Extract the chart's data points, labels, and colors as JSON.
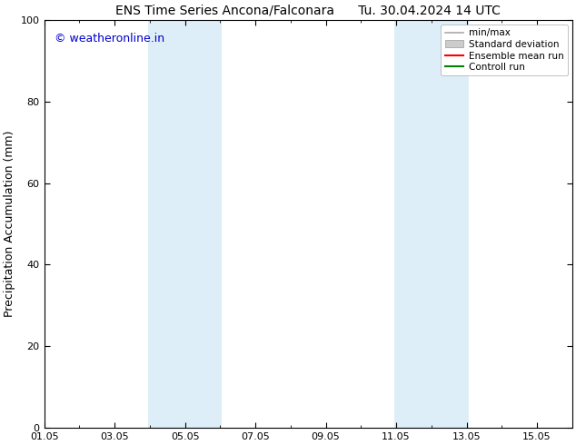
{
  "title": "ENS Time Series Ancona/Falconara      Tu. 30.04.2024 14 UTC",
  "ylabel": "Precipitation Accumulation (mm)",
  "watermark": "© weatheronline.in",
  "watermark_color": "#0000cc",
  "ylim": [
    0,
    100
  ],
  "yticks": [
    0,
    20,
    40,
    60,
    80,
    100
  ],
  "xlim": [
    1,
    16
  ],
  "x_tick_labels": [
    "01.05",
    "03.05",
    "05.05",
    "07.05",
    "09.05",
    "11.05",
    "13.05",
    "15.05"
  ],
  "x_tick_positions": [
    1,
    3,
    5,
    7,
    9,
    11,
    13,
    15
  ],
  "x_minor_positions": [
    1,
    2,
    3,
    4,
    5,
    6,
    7,
    8,
    9,
    10,
    11,
    12,
    13,
    14,
    15,
    16
  ],
  "shaded_regions": [
    {
      "x_start": 3.95,
      "x_end": 6.05
    },
    {
      "x_start": 10.95,
      "x_end": 13.05
    }
  ],
  "shade_color": "#ddeef8",
  "background_color": "#ffffff",
  "legend_entries": [
    {
      "label": "min/max",
      "color": "#aaaaaa",
      "linewidth": 1.2,
      "linestyle": "-",
      "type": "line"
    },
    {
      "label": "Standard deviation",
      "color": "#cccccc",
      "linewidth": 8,
      "linestyle": "-",
      "type": "patch"
    },
    {
      "label": "Ensemble mean run",
      "color": "#ff0000",
      "linewidth": 1.5,
      "linestyle": "-",
      "type": "line"
    },
    {
      "label": "Controll run",
      "color": "#008000",
      "linewidth": 1.5,
      "linestyle": "-",
      "type": "line"
    }
  ],
  "title_fontsize": 10,
  "ylabel_fontsize": 9,
  "tick_fontsize": 8,
  "legend_fontsize": 7.5,
  "watermark_fontsize": 9
}
